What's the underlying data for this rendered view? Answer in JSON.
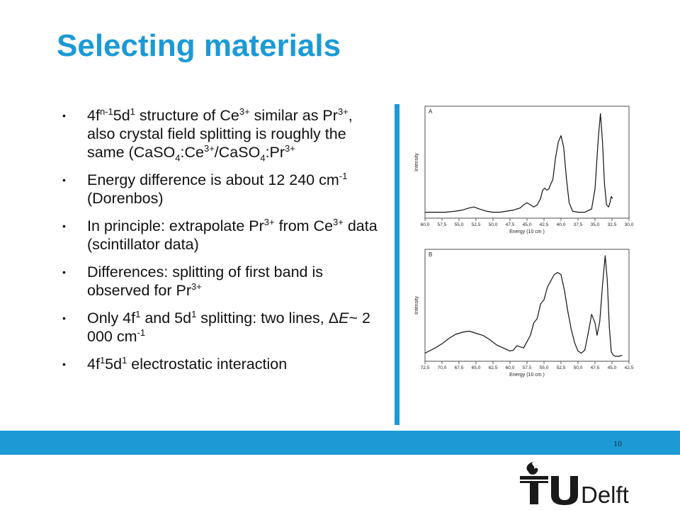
{
  "slide": {
    "title": "Selecting materials",
    "page_number": "10",
    "bullet_glyph": "•",
    "logo_text": "TUDelft"
  },
  "bullets": [
    [
      "4f",
      {
        "sup": "n-1"
      },
      "5d",
      {
        "sup": "1"
      },
      " structure of Ce",
      {
        "sup": "3+"
      },
      " similar as Pr",
      {
        "sup": "3+"
      },
      ", also crystal field splitting is roughly the same (CaSO",
      {
        "sub": "4"
      },
      ":Ce",
      {
        "sup": "3+"
      },
      "/CaSO",
      {
        "sub": "4"
      },
      ":Pr",
      {
        "sup": "3+"
      }
    ],
    [
      "Energy difference is about 12 240 cm",
      {
        "sup": "-1"
      },
      " (Dorenbos)"
    ],
    [
      "In principle: extrapolate Pr",
      {
        "sup": "3+"
      },
      " from Ce",
      {
        "sup": "3+"
      },
      " data (scintillator data)"
    ],
    [
      "Differences: splitting of first band is observed for Pr",
      {
        "sup": "3+"
      }
    ],
    [
      "Only 4f",
      {
        "sup": "1"
      },
      " and 5d",
      {
        "sup": "1"
      },
      " splitting: two lines, Δ",
      {
        "i": "E"
      },
      "~ 2 000 cm",
      {
        "sup": "-1"
      }
    ],
    [
      "4f",
      {
        "sup": "1"
      },
      "5d",
      {
        "sup": "1"
      },
      " electrostatic interaction"
    ]
  ],
  "chart_data": [
    {
      "type": "line",
      "panel_label": "A",
      "xlabel": "Energy (10 cm )",
      "ylabel": "Intensity",
      "x_reversed": true,
      "xlim": [
        60.0,
        30.0
      ],
      "xticks": [
        60.0,
        57.5,
        55.0,
        52.5,
        50.0,
        47.5,
        45.0,
        42.5,
        40.0,
        37.5,
        35.0,
        32.5,
        30.0
      ],
      "xtick_labels": [
        "60,0",
        "57,5",
        "55,0",
        "52,5",
        "50,0",
        "47,5",
        "45,0",
        "42,5",
        "40,0",
        "37,5",
        "35,0",
        "32,5",
        "30,0"
      ],
      "ylim": [
        0,
        1
      ],
      "series": [
        {
          "x": [
            60.0,
            58.5,
            57.0,
            55.5,
            54.5,
            53.5,
            52.8,
            52.0,
            51.0,
            50.0,
            49.0,
            48.0,
            47.0,
            46.0,
            45.5,
            45.0,
            44.5,
            44.0,
            43.5,
            43.0,
            42.7,
            42.4,
            42.1,
            41.8,
            41.5,
            41.2,
            40.8,
            40.4,
            40.0,
            39.6,
            39.2,
            38.8,
            38.3,
            37.5,
            36.5,
            35.5,
            35.0,
            34.5,
            34.2,
            33.9,
            33.6,
            33.3,
            33.0,
            32.8,
            32.6,
            32.4
          ],
          "y": [
            0.03,
            0.03,
            0.03,
            0.04,
            0.05,
            0.07,
            0.08,
            0.06,
            0.04,
            0.03,
            0.03,
            0.04,
            0.05,
            0.07,
            0.1,
            0.12,
            0.1,
            0.08,
            0.1,
            0.16,
            0.24,
            0.26,
            0.24,
            0.25,
            0.3,
            0.34,
            0.55,
            0.7,
            0.76,
            0.65,
            0.35,
            0.12,
            0.04,
            0.03,
            0.03,
            0.06,
            0.25,
            0.75,
            0.97,
            0.7,
            0.3,
            0.1,
            0.08,
            0.12,
            0.18,
            0.16
          ]
        }
      ]
    },
    {
      "type": "line",
      "panel_label": "B",
      "xlabel": "Energy (10 cm )",
      "ylabel": "Intensity",
      "x_reversed": true,
      "xlim": [
        72.5,
        42.5
      ],
      "xticks": [
        72.5,
        70.0,
        67.5,
        65.0,
        62.5,
        60.0,
        57.5,
        55.0,
        52.5,
        50.0,
        47.5,
        45.0,
        42.5
      ],
      "xtick_labels": [
        "72,5",
        "70,0",
        "67,5",
        "65,0",
        "62,5",
        "60,0",
        "57,5",
        "55,0",
        "52,5",
        "50,0",
        "47,5",
        "45,0",
        "42,5"
      ],
      "ylim": [
        0,
        1
      ],
      "series": [
        {
          "x": [
            72.5,
            71.0,
            70.0,
            69.0,
            68.0,
            67.0,
            66.0,
            65.0,
            64.0,
            63.0,
            62.0,
            61.0,
            60.0,
            59.5,
            59.0,
            58.5,
            58.0,
            57.5,
            57.0,
            56.5,
            56.0,
            55.5,
            55.0,
            54.5,
            54.0,
            53.5,
            53.0,
            52.5,
            52.0,
            51.5,
            51.0,
            50.5,
            50.0,
            49.5,
            49.0,
            48.5,
            48.0,
            47.5,
            47.2,
            46.8,
            46.4,
            46.0,
            45.7,
            45.4,
            45.1,
            44.8,
            44.5,
            44.0,
            43.5
          ],
          "y": [
            0.05,
            0.1,
            0.14,
            0.19,
            0.23,
            0.25,
            0.26,
            0.24,
            0.22,
            0.18,
            0.13,
            0.1,
            0.07,
            0.08,
            0.12,
            0.11,
            0.1,
            0.16,
            0.22,
            0.34,
            0.38,
            0.52,
            0.56,
            0.68,
            0.74,
            0.8,
            0.82,
            0.8,
            0.65,
            0.45,
            0.28,
            0.15,
            0.07,
            0.05,
            0.08,
            0.24,
            0.42,
            0.34,
            0.22,
            0.35,
            0.7,
            0.98,
            0.75,
            0.3,
            0.06,
            0.03,
            0.02,
            0.02,
            0.03
          ]
        }
      ]
    }
  ]
}
